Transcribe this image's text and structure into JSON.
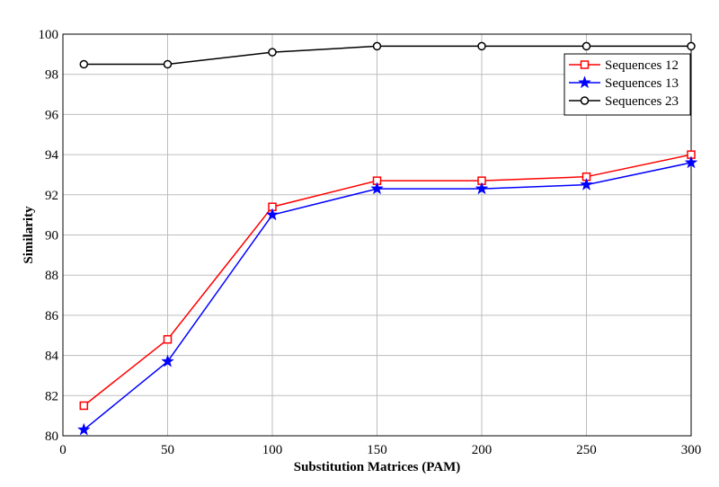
{
  "chart_data": {
    "type": "line",
    "xlabel": "Substitution Matrices (PAM)",
    "ylabel": "Similarity",
    "xlim": [
      0,
      300
    ],
    "ylim": [
      80,
      100
    ],
    "xticks": [
      0,
      50,
      100,
      150,
      200,
      250,
      300
    ],
    "yticks": [
      80,
      82,
      84,
      86,
      88,
      90,
      92,
      94,
      96,
      98,
      100
    ],
    "grid": true,
    "legend_position": "top-right",
    "x": [
      10,
      50,
      100,
      150,
      200,
      250,
      300
    ],
    "series": [
      {
        "name": "Sequences 12",
        "color": "#ff0000",
        "marker": "square",
        "values": [
          81.5,
          84.8,
          91.4,
          92.7,
          92.7,
          92.9,
          94.0
        ]
      },
      {
        "name": "Sequences 13",
        "color": "#0000ff",
        "marker": "star",
        "values": [
          80.3,
          83.7,
          91.0,
          92.3,
          92.3,
          92.5,
          93.6
        ]
      },
      {
        "name": "Sequences 23",
        "color": "#000000",
        "marker": "circle",
        "values": [
          98.5,
          98.5,
          99.1,
          99.4,
          99.4,
          99.4,
          99.4
        ]
      }
    ]
  }
}
